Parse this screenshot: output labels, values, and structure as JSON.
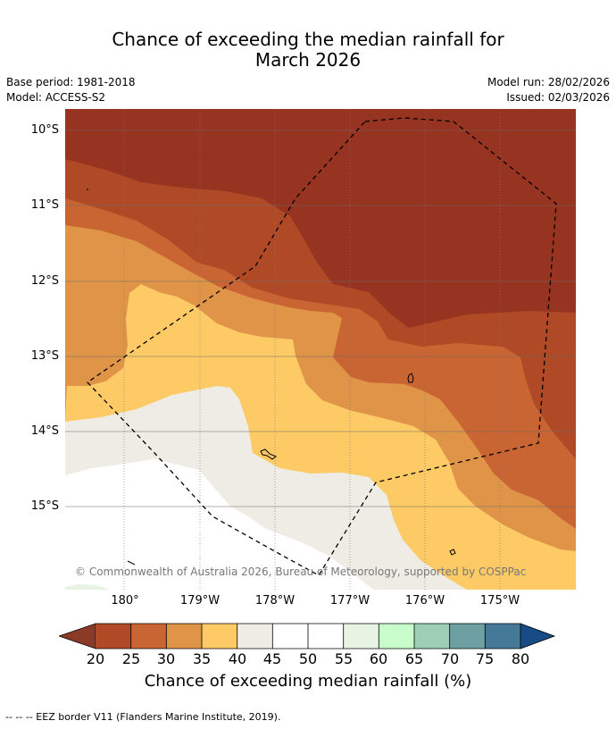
{
  "title_line1": "Chance of exceeding the median rainfall for",
  "title_line2": "March 2026",
  "base_period": "Base period: 1981-2018",
  "model": "Model: ACCESS-S2",
  "model_run": "Model run: 28/02/2026",
  "issued": "Issued: 02/03/2026",
  "lat_labels": [
    "10°S",
    "11°S",
    "12°S",
    "13°S",
    "14°S",
    "15°S"
  ],
  "lon_labels": [
    "180°",
    "179°W",
    "178°W",
    "177°W",
    "176°W",
    "175°W"
  ],
  "colorbar": {
    "ticks": [
      "20",
      "25",
      "30",
      "35",
      "40",
      "45",
      "50",
      "55",
      "60",
      "65",
      "70",
      "75",
      "80"
    ],
    "label": "Chance of exceeding median rainfall (%)",
    "colors": {
      "under": "#8b3a28",
      "b20_25": "#b04a26",
      "b25_30": "#c96433",
      "b30_35": "#df9448",
      "b35_40": "#fdca66",
      "b40_45": "#efebe5",
      "b45_50": "#ffffff",
      "b50_55": "#ffffff",
      "b55_60": "#e8f3e4",
      "b60_65": "#c9fccb",
      "b65_70": "#9ccfb6",
      "b70_75": "#6ea0a3",
      "b75_80": "#437896",
      "over": "#174b85"
    }
  },
  "map_colors": {
    "lt20": "#973421",
    "b20_25": "#b04a26",
    "b25_30": "#c96433",
    "b30_35": "#df9448",
    "b35_40": "#fdca66",
    "b40_45": "#efebe5",
    "b55_60": "#e8f3e4",
    "plain": "#ffffff"
  },
  "eez_note": "--  --  -- EEZ border V11 (Flanders Marine Institute, 2019).",
  "credit": "© Commonwealth of Australia 2026, Bureau of Meteorology, supported by COSPPac"
}
